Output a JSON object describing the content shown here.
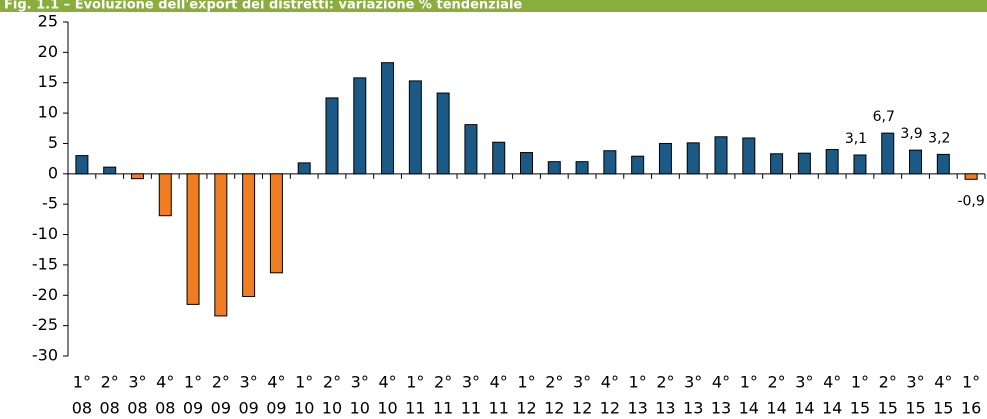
{
  "chart_data": {
    "type": "bar",
    "title": "Fig. 1.1 – Evoluzione dell'export dei distretti: variazione % tendenziale",
    "categories": [
      [
        "1°",
        "08"
      ],
      [
        "2°",
        "08"
      ],
      [
        "3°",
        "08"
      ],
      [
        "4°",
        "08"
      ],
      [
        "1°",
        "09"
      ],
      [
        "2°",
        "09"
      ],
      [
        "3°",
        "09"
      ],
      [
        "4°",
        "09"
      ],
      [
        "1°",
        "10"
      ],
      [
        "2°",
        "10"
      ],
      [
        "3°",
        "10"
      ],
      [
        "4°",
        "10"
      ],
      [
        "1°",
        "11"
      ],
      [
        "2°",
        "11"
      ],
      [
        "3°",
        "11"
      ],
      [
        "4°",
        "11"
      ],
      [
        "1°",
        "12"
      ],
      [
        "2°",
        "12"
      ],
      [
        "3°",
        "12"
      ],
      [
        "4°",
        "12"
      ],
      [
        "1°",
        "13"
      ],
      [
        "2°",
        "13"
      ],
      [
        "3°",
        "13"
      ],
      [
        "4°",
        "13"
      ],
      [
        "1°",
        "14"
      ],
      [
        "2°",
        "14"
      ],
      [
        "3°",
        "14"
      ],
      [
        "4°",
        "14"
      ],
      [
        "1°",
        "15"
      ],
      [
        "2°",
        "15"
      ],
      [
        "3°",
        "15"
      ],
      [
        "4°",
        "15"
      ],
      [
        "1°",
        "16"
      ]
    ],
    "values": [
      3.0,
      1.1,
      -0.8,
      -6.9,
      -21.5,
      -23.4,
      -20.2,
      -16.3,
      1.8,
      12.5,
      15.8,
      18.3,
      15.3,
      13.3,
      8.1,
      5.2,
      3.5,
      2.0,
      2.0,
      3.8,
      2.9,
      5.0,
      5.1,
      6.1,
      5.9,
      3.3,
      3.4,
      4.0,
      3.1,
      6.7,
      3.9,
      3.2,
      -0.9
    ],
    "value_labels": [
      null,
      null,
      null,
      null,
      null,
      null,
      null,
      null,
      null,
      null,
      null,
      null,
      null,
      null,
      null,
      null,
      null,
      null,
      null,
      null,
      null,
      null,
      null,
      null,
      null,
      null,
      null,
      null,
      "3,1",
      "6,7",
      "3,9",
      "3,2",
      "-0,9"
    ],
    "positive_color": "#1a5a85",
    "negative_color": "#f07d22",
    "ylim": [
      -30,
      25
    ],
    "yticks": [
      -30,
      -25,
      -20,
      -15,
      -10,
      -5,
      0,
      5,
      10,
      15,
      20,
      25
    ],
    "grid": false
  }
}
